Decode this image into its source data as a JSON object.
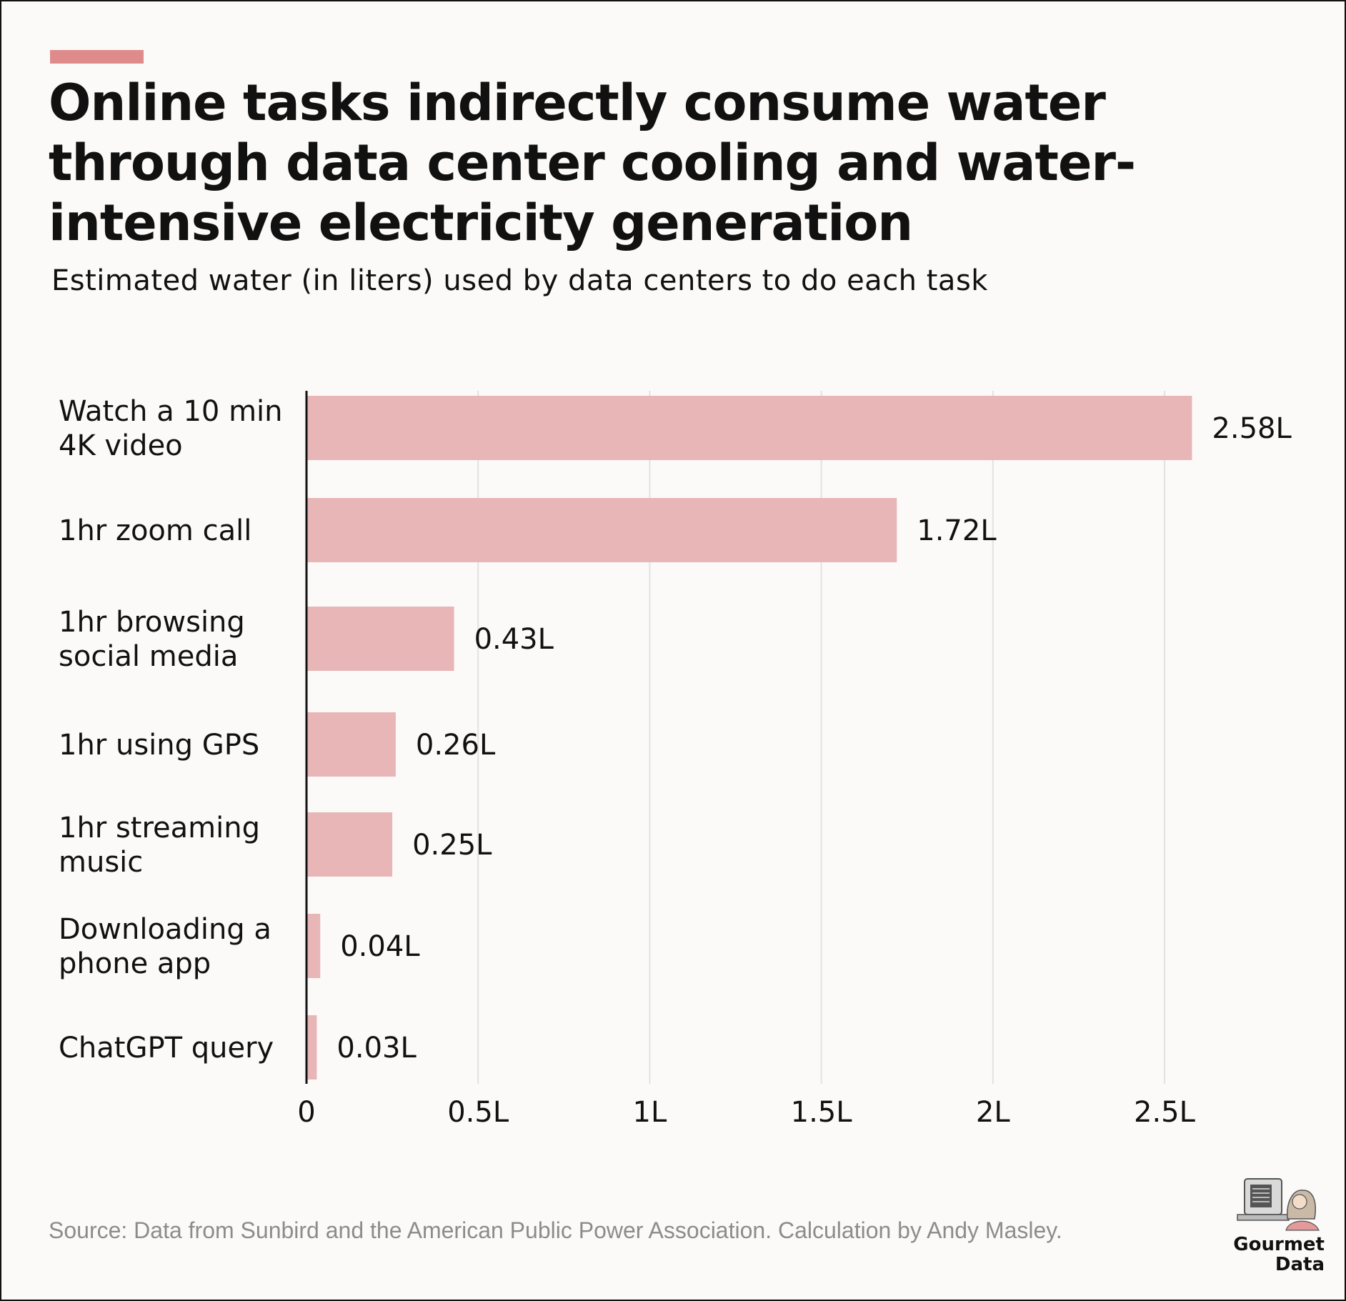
{
  "header": {
    "title": "Online tasks indirectly consume water through data center cooling and water-intensive electricity generation",
    "subtitle": "Estimated water (in liters) used by data centers to do each task"
  },
  "footer": {
    "source": "Source: Data from Sunbird and the American Public Power Association. Calculation by Andy Masley.",
    "brand_line1": "Gourmet",
    "brand_line2": "Data"
  },
  "colors": {
    "accent": "#e08b8b",
    "bar": "#e8b6b7",
    "gridline": "#e2e2e2",
    "axis": "#111111",
    "background": "#fbfaf8"
  },
  "chart_data": {
    "type": "bar",
    "orientation": "horizontal",
    "categories": [
      [
        "Watch a 10 min",
        "4K video"
      ],
      [
        "1hr zoom call"
      ],
      [
        "1hr browsing",
        "social media"
      ],
      [
        "1hr using GPS"
      ],
      [
        "1hr streaming",
        "music"
      ],
      [
        "Downloading a",
        "phone app"
      ],
      [
        "ChatGPT query"
      ]
    ],
    "values": [
      2.58,
      1.72,
      0.43,
      0.26,
      0.25,
      0.04,
      0.03
    ],
    "data_labels": [
      "2.58L",
      "1.72L",
      "0.43L",
      "0.26L",
      "0.25L",
      "0.04L",
      "0.03L"
    ],
    "x_ticks": [
      0,
      0.5,
      1,
      1.5,
      2,
      2.5
    ],
    "x_tick_labels": [
      "0",
      "0.5L",
      "1L",
      "1.5L",
      "2L",
      "2.5L"
    ],
    "xlim": [
      0,
      2.55
    ],
    "grid": true,
    "legend": "none"
  }
}
